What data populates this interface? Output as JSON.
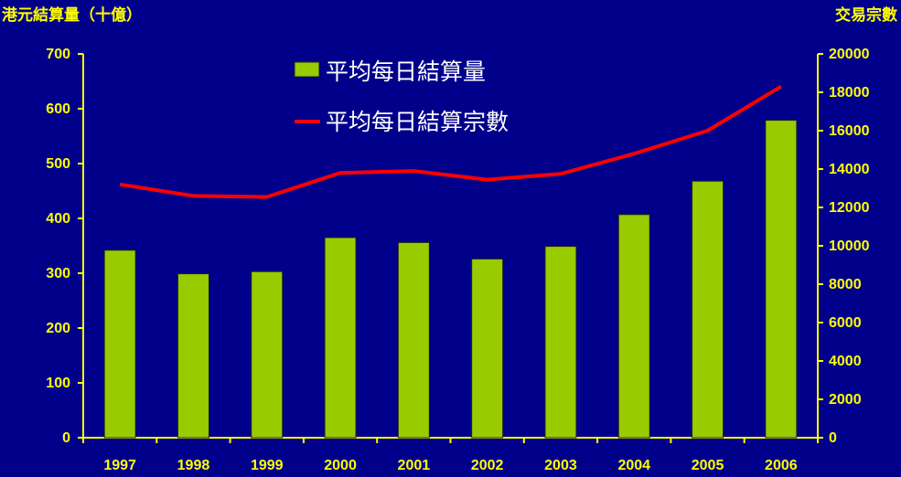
{
  "chart_data": {
    "type": "bar",
    "categories": [
      "1997",
      "1998",
      "1999",
      "2000",
      "2001",
      "2002",
      "2003",
      "2004",
      "2005",
      "2006"
    ],
    "series": [
      {
        "name": "平均每日結算量",
        "type": "bar",
        "axis": "left",
        "color": "#99cc00",
        "values": [
          342,
          299,
          303,
          365,
          356,
          326,
          349,
          407,
          468,
          579
        ]
      },
      {
        "name": "平均每日結算宗數",
        "type": "line",
        "axis": "right",
        "color": "#ff0000",
        "values": [
          13200,
          12600,
          12550,
          13800,
          13900,
          13450,
          13750,
          14800,
          16000,
          18300
        ]
      }
    ],
    "ylabel": "港元結算量（十億）",
    "y2label": "交易宗數",
    "ylim": [
      0,
      700
    ],
    "y2lim": [
      0,
      20000
    ],
    "yticks": [
      "0",
      "100",
      "200",
      "300",
      "400",
      "500",
      "600",
      "700"
    ],
    "y2ticks": [
      "0",
      "2000",
      "4000",
      "6000",
      "8000",
      "10000",
      "12000",
      "14000",
      "16000",
      "18000",
      "20000"
    ],
    "legend_position": "top-center"
  }
}
